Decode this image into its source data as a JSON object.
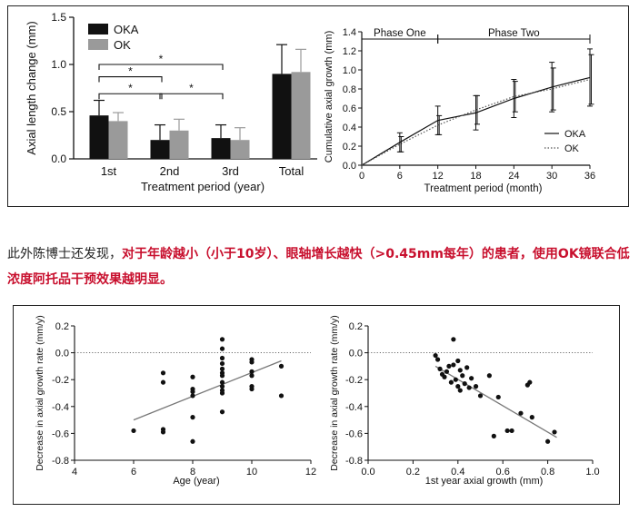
{
  "paragraph": {
    "plain": "此外陈博士还发现，",
    "highlight": "对于年龄越小（小于10岁）、眼轴增长越快（>0.45mm每年）的患者，使用OK镜联合低浓度阿托品干预效果越明显。",
    "highlight_color": "#c8102e"
  },
  "chart_data": [
    {
      "type": "bar",
      "id": "axial-length-change",
      "xlabel": "Treatment period (year)",
      "ylabel": "Axial length change (mm)",
      "ylim": [
        0,
        1.5
      ],
      "yticks": [
        "0.0",
        "0.5",
        "1.0",
        "1.5"
      ],
      "categories": [
        "1st",
        "2nd",
        "3rd",
        "Total"
      ],
      "series": [
        {
          "name": "OKA",
          "color": "#111111",
          "values": [
            0.46,
            0.2,
            0.22,
            0.9
          ],
          "errors": [
            0.16,
            0.16,
            0.14,
            0.31
          ]
        },
        {
          "name": "OK",
          "color": "#9a9a9a",
          "values": [
            0.4,
            0.3,
            0.2,
            0.92
          ],
          "errors": [
            0.09,
            0.12,
            0.13,
            0.24
          ]
        }
      ],
      "legend": "top-left",
      "significance": [
        {
          "from": 0,
          "to": 2,
          "label": "*",
          "y": 1.0
        },
        {
          "from": 0,
          "to": 1,
          "label": "*",
          "y": 0.87
        },
        {
          "from": 0,
          "to": 1,
          "label": "*",
          "y": 0.69
        },
        {
          "from": 1,
          "to": 2,
          "label": "*",
          "y": 0.69
        }
      ]
    },
    {
      "type": "line",
      "id": "cumulative-axial-growth",
      "xlabel": "Treatment period (month)",
      "ylabel": "Cumulative axial growth (mm)",
      "xlim": [
        0,
        36
      ],
      "ylim": [
        0,
        1.4
      ],
      "xticks": [
        "0",
        "6",
        "12",
        "18",
        "24",
        "30",
        "36"
      ],
      "yticks": [
        "0.0",
        "0.2",
        "0.4",
        "0.6",
        "0.8",
        "1.0",
        "1.2",
        "1.4"
      ],
      "x": [
        0,
        6,
        12,
        18,
        24,
        30,
        36
      ],
      "series": [
        {
          "name": "OKA",
          "style": "solid",
          "values": [
            0,
            0.24,
            0.47,
            0.55,
            0.7,
            0.82,
            0.92
          ],
          "errors": [
            0,
            0.1,
            0.15,
            0.18,
            0.2,
            0.26,
            0.3
          ]
        },
        {
          "name": "OK",
          "style": "dotted",
          "values": [
            0,
            0.22,
            0.42,
            0.58,
            0.72,
            0.8,
            0.9
          ],
          "errors": [
            0,
            0.08,
            0.1,
            0.15,
            0.16,
            0.22,
            0.26
          ]
        }
      ],
      "phases": [
        {
          "label": "Phase One",
          "from": 0,
          "to": 12
        },
        {
          "label": "Phase Two",
          "from": 12,
          "to": 36
        }
      ],
      "legend": "bottom-right"
    },
    {
      "type": "scatter",
      "id": "age-vs-decrease",
      "xlabel": "Age (year)",
      "ylabel": "Decrease in axial growth rate (mm/y)",
      "xlim": [
        4,
        12
      ],
      "ylim": [
        -0.8,
        0.2
      ],
      "xticks": [
        "4",
        "6",
        "8",
        "10",
        "12"
      ],
      "yticks": [
        "-0.8",
        "-0.6",
        "-0.4",
        "-0.2",
        "0.0",
        "0.2"
      ],
      "reference_y": 0,
      "trend": [
        [
          6,
          -0.5
        ],
        [
          11,
          -0.06
        ]
      ],
      "points": [
        [
          6,
          -0.58
        ],
        [
          7,
          -0.15
        ],
        [
          7,
          -0.22
        ],
        [
          7,
          -0.57
        ],
        [
          7,
          -0.59
        ],
        [
          8,
          -0.18
        ],
        [
          8,
          -0.27
        ],
        [
          8,
          -0.29
        ],
        [
          8,
          -0.32
        ],
        [
          8,
          -0.48
        ],
        [
          8,
          -0.66
        ],
        [
          9,
          0.1
        ],
        [
          9,
          0.03
        ],
        [
          9,
          -0.04
        ],
        [
          9,
          -0.08
        ],
        [
          9,
          -0.12
        ],
        [
          9,
          -0.15
        ],
        [
          9,
          -0.17
        ],
        [
          9,
          -0.22
        ],
        [
          9,
          -0.25
        ],
        [
          9,
          -0.28
        ],
        [
          9,
          -0.3
        ],
        [
          9,
          -0.44
        ],
        [
          10,
          -0.05
        ],
        [
          10,
          -0.07
        ],
        [
          10,
          -0.14
        ],
        [
          10,
          -0.17
        ],
        [
          10,
          -0.25
        ],
        [
          10,
          -0.27
        ],
        [
          11,
          -0.1
        ],
        [
          11,
          -0.32
        ]
      ]
    },
    {
      "type": "scatter",
      "id": "growth-vs-decrease",
      "xlabel": "1st year axial growth (mm)",
      "ylabel": "Decrease in axial growth rate (mm/y)",
      "xlim": [
        0.0,
        1.0
      ],
      "ylim": [
        -0.8,
        0.2
      ],
      "xticks": [
        "0.0",
        "0.2",
        "0.4",
        "0.6",
        "0.8",
        "1.0"
      ],
      "yticks": [
        "-0.8",
        "-0.6",
        "-0.4",
        "-0.2",
        "0.0",
        "0.2"
      ],
      "reference_y": 0,
      "trend": [
        [
          0.3,
          -0.1
        ],
        [
          0.84,
          -0.63
        ]
      ],
      "points": [
        [
          0.3,
          -0.02
        ],
        [
          0.31,
          -0.05
        ],
        [
          0.32,
          -0.12
        ],
        [
          0.33,
          -0.16
        ],
        [
          0.34,
          -0.18
        ],
        [
          0.35,
          -0.14
        ],
        [
          0.36,
          -0.1
        ],
        [
          0.37,
          -0.22
        ],
        [
          0.38,
          -0.09
        ],
        [
          0.38,
          0.1
        ],
        [
          0.39,
          -0.2
        ],
        [
          0.4,
          -0.06
        ],
        [
          0.4,
          -0.25
        ],
        [
          0.41,
          -0.13
        ],
        [
          0.41,
          -0.28
        ],
        [
          0.42,
          -0.17
        ],
        [
          0.43,
          -0.23
        ],
        [
          0.44,
          -0.11
        ],
        [
          0.45,
          -0.26
        ],
        [
          0.46,
          -0.19
        ],
        [
          0.48,
          -0.25
        ],
        [
          0.5,
          -0.32
        ],
        [
          0.54,
          -0.17
        ],
        [
          0.56,
          -0.62
        ],
        [
          0.58,
          -0.33
        ],
        [
          0.62,
          -0.58
        ],
        [
          0.64,
          -0.58
        ],
        [
          0.68,
          -0.45
        ],
        [
          0.71,
          -0.24
        ],
        [
          0.72,
          -0.22
        ],
        [
          0.73,
          -0.48
        ],
        [
          0.8,
          -0.66
        ],
        [
          0.83,
          -0.59
        ]
      ]
    }
  ]
}
